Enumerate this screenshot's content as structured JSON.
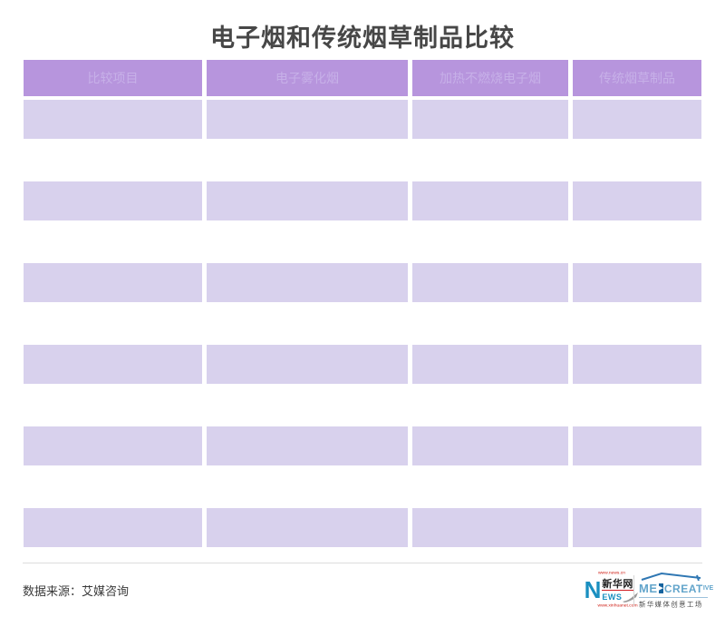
{
  "page": {
    "title": "电子烟和传统烟草制品比较"
  },
  "chart_data": {
    "type": "table",
    "title": "电子烟和传统烟草制品比较",
    "columns": [
      "比较项目",
      "电子雾化烟",
      "加热不燃烧电子烟",
      "传统烟草制品"
    ],
    "rows": [
      [
        "",
        "",
        "",
        ""
      ],
      [
        "",
        "",
        "",
        ""
      ],
      [
        "",
        "",
        "",
        ""
      ],
      [
        "",
        "",
        "",
        ""
      ],
      [
        "",
        "",
        "",
        ""
      ],
      [
        "",
        "",
        "",
        ""
      ]
    ],
    "source": "数据来源：艾媒咨询",
    "layout": {
      "header_bg": "#b795dd",
      "row_bg": "#d8d1ed",
      "empty_body_cells": true
    }
  },
  "table": {
    "headers": [
      "比较项目",
      "电子雾化烟",
      "加热不燃烧电子烟",
      "传统烟草制品"
    ],
    "rows": [
      [
        "",
        "",
        "",
        ""
      ],
      [
        "",
        "",
        "",
        ""
      ],
      [
        "",
        "",
        "",
        ""
      ],
      [
        "",
        "",
        "",
        ""
      ],
      [
        "",
        "",
        "",
        ""
      ],
      [
        "",
        "",
        "",
        ""
      ]
    ]
  },
  "footer": {
    "source": "数据来源：艾媒咨询",
    "logos": {
      "xinhua": {
        "url_top": "www.news.cn",
        "n": "N",
        "name": "新华网",
        "ews": "EWS",
        "url_bottom": "www.xinhuanet.com"
      },
      "medcreative": {
        "me": "ME",
        "play": "▶",
        "creat": "CREAT",
        "ive": "IVE",
        "subtitle": "新华媒体创意工场"
      }
    }
  },
  "colors": {
    "header_bg": "#b795dd",
    "header_text": "#c7b0e8",
    "row_bg": "#d8d1ed",
    "title_text": "#474747",
    "accent_red": "#cf2118",
    "xinhua_blue": "#1a8fc0",
    "med_light_blue": "#63a5cb",
    "med_dark_blue": "#15639e"
  }
}
